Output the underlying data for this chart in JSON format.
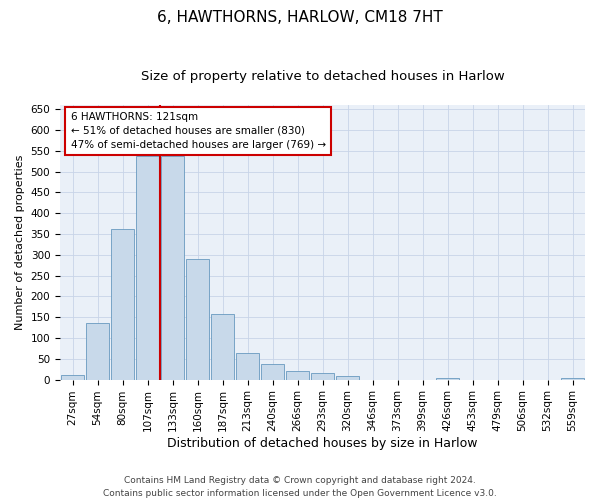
{
  "title": "6, HAWTHORNS, HARLOW, CM18 7HT",
  "subtitle": "Size of property relative to detached houses in Harlow",
  "xlabel": "Distribution of detached houses by size in Harlow",
  "ylabel": "Number of detached properties",
  "categories": [
    "27sqm",
    "54sqm",
    "80sqm",
    "107sqm",
    "133sqm",
    "160sqm",
    "187sqm",
    "213sqm",
    "240sqm",
    "266sqm",
    "293sqm",
    "320sqm",
    "346sqm",
    "373sqm",
    "399sqm",
    "426sqm",
    "453sqm",
    "479sqm",
    "506sqm",
    "532sqm",
    "559sqm"
  ],
  "values": [
    10,
    136,
    363,
    538,
    538,
    290,
    158,
    65,
    38,
    20,
    15,
    9,
    0,
    0,
    0,
    4,
    0,
    0,
    0,
    0,
    4
  ],
  "bar_color": "#c8d9ea",
  "bar_edge_color": "#6899c0",
  "vline_color": "#cc0000",
  "vline_x": 3.5,
  "annotation_text": "6 HAWTHORNS: 121sqm\n← 51% of detached houses are smaller (830)\n47% of semi-detached houses are larger (769) →",
  "annotation_box_color": "#ffffff",
  "annotation_box_edge_color": "#cc0000",
  "grid_color": "#c8d4e8",
  "background_color": "#eaf0f8",
  "ylim": [
    0,
    660
  ],
  "yticks": [
    0,
    50,
    100,
    150,
    200,
    250,
    300,
    350,
    400,
    450,
    500,
    550,
    600,
    650
  ],
  "footer": "Contains HM Land Registry data © Crown copyright and database right 2024.\nContains public sector information licensed under the Open Government Licence v3.0.",
  "title_fontsize": 11,
  "subtitle_fontsize": 9.5,
  "xlabel_fontsize": 9,
  "ylabel_fontsize": 8,
  "tick_fontsize": 7.5,
  "annotation_fontsize": 7.5,
  "footer_fontsize": 6.5
}
